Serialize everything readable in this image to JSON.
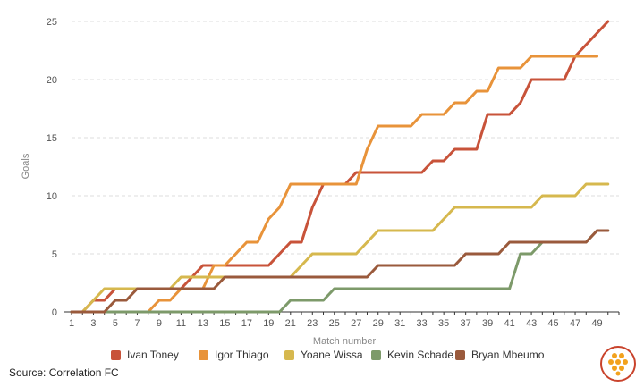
{
  "source": "Source: Correlation FC",
  "colors": {
    "grid": "#dddddd",
    "axis": "#333333",
    "logo_ring": "#c9432c",
    "logo_fill": "#f2a21e"
  },
  "logo_icon": "hexagon-cluster-logo-icon",
  "chart_data": {
    "type": "line",
    "xlabel": "Match number",
    "ylabel": "Goals",
    "xlim": [
      1,
      51
    ],
    "ylim": [
      0,
      25
    ],
    "x_ticks": [
      1,
      3,
      5,
      7,
      9,
      11,
      13,
      15,
      17,
      19,
      21,
      23,
      25,
      27,
      29,
      31,
      33,
      35,
      37,
      39,
      41,
      43,
      45,
      47,
      49
    ],
    "y_ticks": [
      0,
      5,
      10,
      15,
      20,
      25
    ],
    "grid": "horizontal dashed",
    "legend_position": "bottom",
    "series": [
      {
        "name": "Ivan Toney",
        "color": "#c8533a",
        "x": [
          1,
          2,
          3,
          4,
          5,
          6,
          7,
          8,
          9,
          10,
          11,
          12,
          13,
          14,
          15,
          16,
          17,
          18,
          19,
          20,
          21,
          22,
          23,
          24,
          25,
          26,
          27,
          28,
          29,
          30,
          31,
          32,
          33,
          34,
          35,
          36,
          37,
          38,
          39,
          40,
          41,
          42,
          43,
          44,
          45,
          46,
          47,
          48,
          49,
          50
        ],
        "values": [
          0,
          0,
          1,
          1,
          2,
          2,
          2,
          2,
          2,
          2,
          2,
          3,
          4,
          4,
          4,
          4,
          4,
          4,
          4,
          5,
          6,
          6,
          9,
          11,
          11,
          11,
          12,
          12,
          12,
          12,
          12,
          12,
          12,
          13,
          13,
          14,
          14,
          14,
          17,
          17,
          17,
          18,
          20,
          20,
          20,
          20,
          22,
          23,
          24,
          25
        ]
      },
      {
        "name": "Igor Thiago",
        "color": "#e8933a",
        "x": [
          1,
          2,
          3,
          4,
          5,
          6,
          7,
          8,
          9,
          10,
          11,
          12,
          13,
          14,
          15,
          16,
          17,
          18,
          19,
          20,
          21,
          22,
          23,
          24,
          25,
          26,
          27,
          28,
          29,
          30,
          31,
          32,
          33,
          34,
          35,
          36,
          37,
          38,
          39,
          40,
          41,
          42,
          43,
          44,
          45,
          46,
          47,
          48,
          49
        ],
        "values": [
          0,
          0,
          0,
          0,
          0,
          0,
          0,
          0,
          1,
          1,
          2,
          2,
          2,
          4,
          4,
          5,
          6,
          6,
          8,
          9,
          11,
          11,
          11,
          11,
          11,
          11,
          11,
          14,
          16,
          16,
          16,
          16,
          17,
          17,
          17,
          18,
          18,
          19,
          19,
          21,
          21,
          21,
          22,
          22,
          22,
          22,
          22,
          22,
          22
        ]
      },
      {
        "name": "Yoane Wissa",
        "color": "#d6b84e",
        "x": [
          1,
          2,
          3,
          4,
          5,
          6,
          7,
          8,
          9,
          10,
          11,
          12,
          13,
          14,
          15,
          16,
          17,
          18,
          19,
          20,
          21,
          22,
          23,
          24,
          25,
          26,
          27,
          28,
          29,
          30,
          31,
          32,
          33,
          34,
          35,
          36,
          37,
          38,
          39,
          40,
          41,
          42,
          43,
          44,
          45,
          46,
          47,
          48,
          49,
          50
        ],
        "values": [
          0,
          0,
          1,
          2,
          2,
          2,
          2,
          2,
          2,
          2,
          3,
          3,
          3,
          3,
          3,
          3,
          3,
          3,
          3,
          3,
          3,
          4,
          5,
          5,
          5,
          5,
          5,
          6,
          7,
          7,
          7,
          7,
          7,
          7,
          8,
          9,
          9,
          9,
          9,
          9,
          9,
          9,
          9,
          10,
          10,
          10,
          10,
          11,
          11,
          11
        ]
      },
      {
        "name": "Kevin Schade",
        "color": "#7d9a6a",
        "x": [
          1,
          2,
          3,
          4,
          5,
          6,
          7,
          8,
          9,
          10,
          11,
          12,
          13,
          14,
          15,
          16,
          17,
          18,
          19,
          20,
          21,
          22,
          23,
          24,
          25,
          26,
          27,
          28,
          29,
          30,
          31,
          32,
          33,
          34,
          35,
          36,
          37,
          38,
          39,
          40,
          41,
          42,
          43,
          44,
          45,
          46,
          47,
          48,
          49,
          50
        ],
        "values": [
          0,
          0,
          0,
          0,
          0,
          0,
          0,
          0,
          0,
          0,
          0,
          0,
          0,
          0,
          0,
          0,
          0,
          0,
          0,
          0,
          1,
          1,
          1,
          1,
          2,
          2,
          2,
          2,
          2,
          2,
          2,
          2,
          2,
          2,
          2,
          2,
          2,
          2,
          2,
          2,
          2,
          5,
          5,
          6,
          6,
          6,
          6,
          6,
          7,
          7
        ]
      },
      {
        "name": "Bryan Mbeumo",
        "color": "#9a5a3c",
        "x": [
          1,
          2,
          3,
          4,
          5,
          6,
          7,
          8,
          9,
          10,
          11,
          12,
          13,
          14,
          15,
          16,
          17,
          18,
          19,
          20,
          21,
          22,
          23,
          24,
          25,
          26,
          27,
          28,
          29,
          30,
          31,
          32,
          33,
          34,
          35,
          36,
          37,
          38,
          39,
          40,
          41,
          42,
          43,
          44,
          45,
          46,
          47,
          48,
          49,
          50
        ],
        "values": [
          0,
          0,
          0,
          0,
          1,
          1,
          2,
          2,
          2,
          2,
          2,
          2,
          2,
          2,
          3,
          3,
          3,
          3,
          3,
          3,
          3,
          3,
          3,
          3,
          3,
          3,
          3,
          3,
          4,
          4,
          4,
          4,
          4,
          4,
          4,
          4,
          5,
          5,
          5,
          5,
          6,
          6,
          6,
          6,
          6,
          6,
          6,
          6,
          7,
          7
        ]
      }
    ]
  }
}
